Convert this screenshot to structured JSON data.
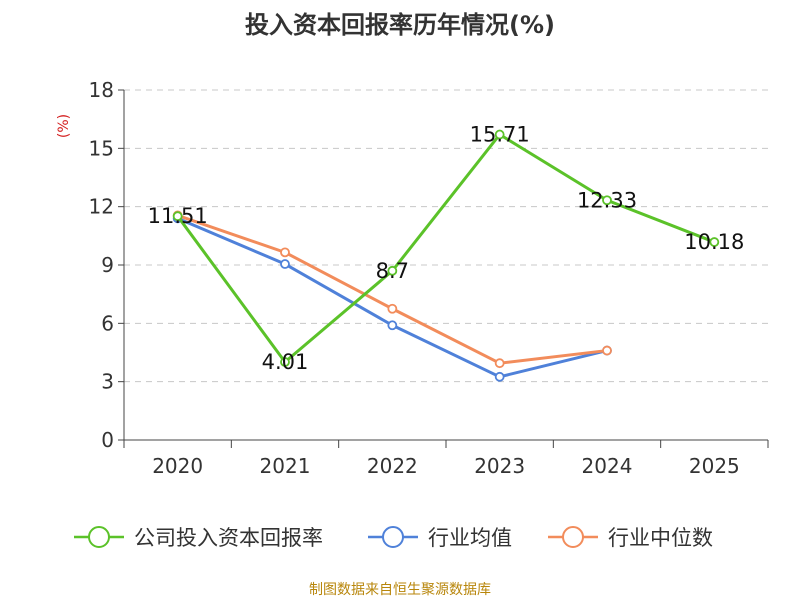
{
  "chart_data": {
    "type": "line",
    "title": "投入资本回报率历年情况(%)",
    "ylabel": "(%)",
    "xlabel": "",
    "categories": [
      "2020",
      "2021",
      "2022",
      "2023",
      "2024",
      "2025"
    ],
    "ylim": [
      0,
      18
    ],
    "yticks": [
      0,
      3,
      6,
      9,
      12,
      15,
      18
    ],
    "yticks_text": [
      "0",
      "3",
      "6",
      "9",
      "12",
      "15",
      "18"
    ],
    "grid": true,
    "series": [
      {
        "name": "公司投入资本回报率",
        "color": "#5bc229",
        "values": [
          11.51,
          4.01,
          8.7,
          15.71,
          12.33,
          10.18
        ],
        "labels": [
          "11.51",
          "4.01",
          "8.7",
          "15.71",
          "12.33",
          "10.18"
        ]
      },
      {
        "name": "行业均值",
        "color": "#4f81d9",
        "values": [
          11.4,
          9.05,
          5.9,
          3.25,
          4.6,
          null
        ]
      },
      {
        "name": "行业中位数",
        "color": "#f28c5b",
        "values": [
          11.55,
          9.65,
          6.75,
          3.95,
          4.6,
          null
        ]
      }
    ],
    "legend_position": "bottom"
  },
  "source": "制图数据来自恒生聚源数据库"
}
